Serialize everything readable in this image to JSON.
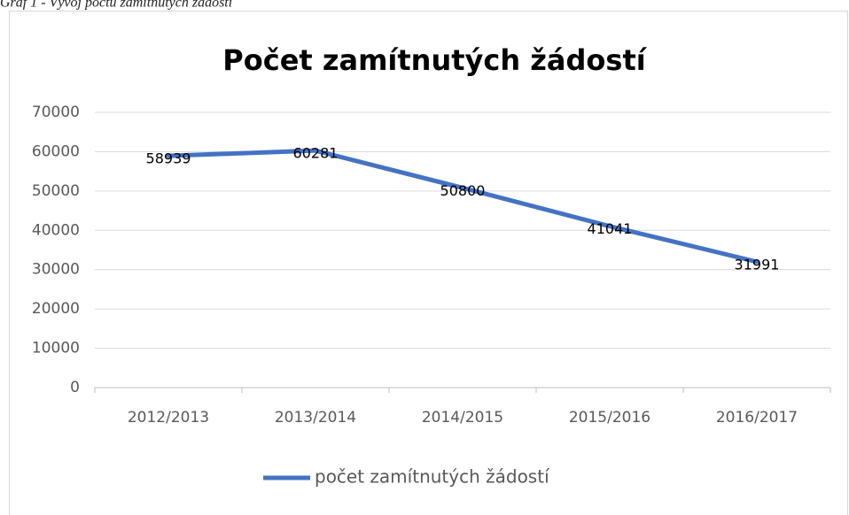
{
  "caption": "Graf 1 - Vývoj počtu zamítnutých žádostí",
  "chart_data": {
    "type": "line",
    "title": "Počet zamítnutých žádostí",
    "categories": [
      "2012/2013",
      "2013/2014",
      "2014/2015",
      "2015/2016",
      "2016/2017"
    ],
    "series": [
      {
        "name": "počet zamítnutých žádostí",
        "color": "#4472c4",
        "values": [
          58939,
          60281,
          50800,
          41041,
          31991
        ]
      }
    ],
    "ylim": [
      0,
      70000
    ],
    "yticks": [
      0,
      10000,
      20000,
      30000,
      40000,
      50000,
      60000,
      70000
    ],
    "grid": true,
    "legend": "bottom",
    "data_labels": true
  }
}
